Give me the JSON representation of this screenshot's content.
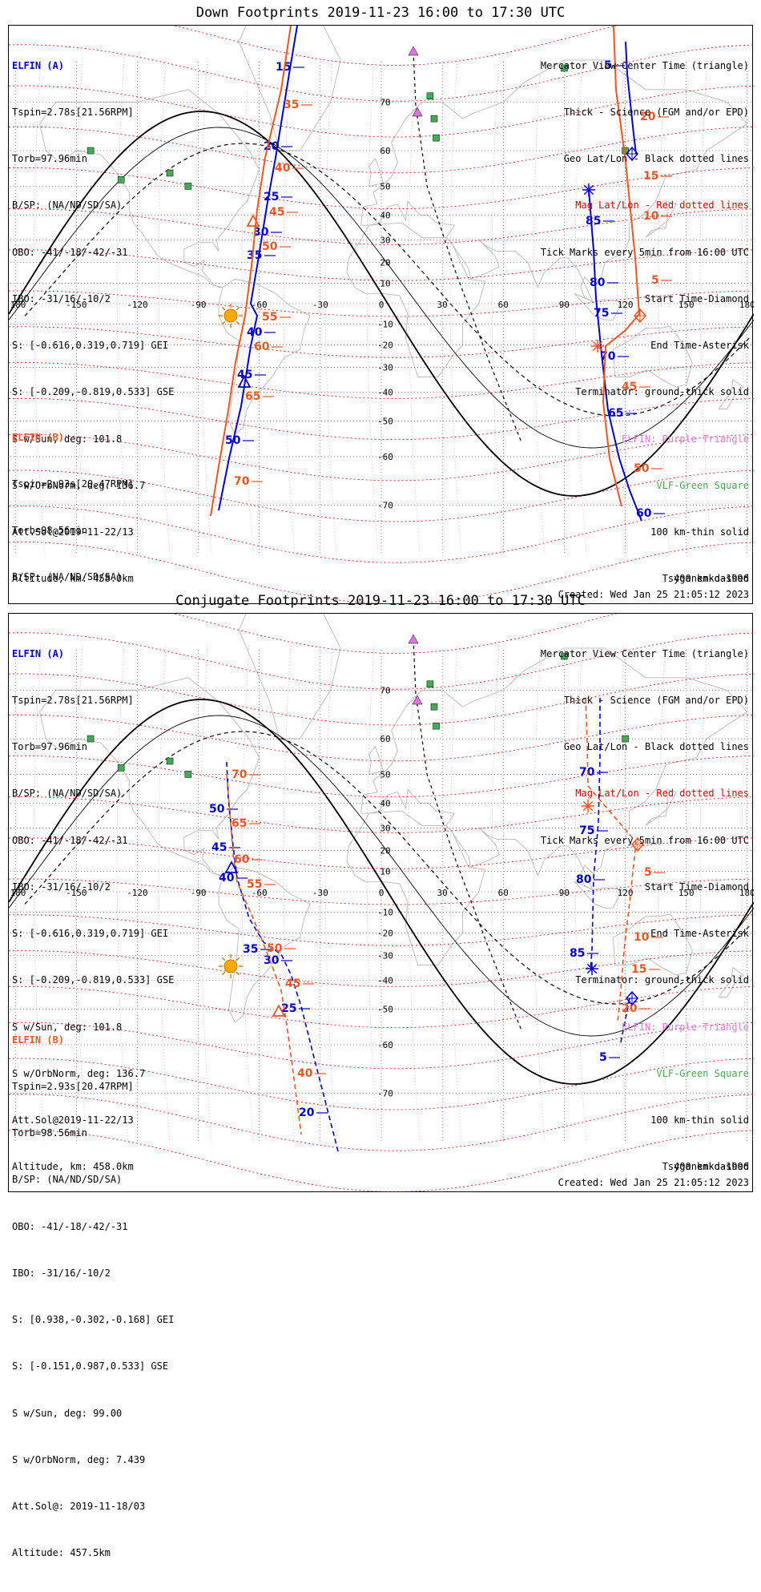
{
  "colors": {
    "probe_a": "#0000cc",
    "probe_b": "#ee5522",
    "mag_grid": "#e00000",
    "geo_grid": "#444444",
    "elfin_marker": "#dd77dd",
    "vlf_marker": "#44aa55",
    "sun": "#ffaa00",
    "coast": "#b8b8b8"
  },
  "icons": {
    "sun": "sun-icon",
    "triangle": "triangle-icon",
    "diamond": "diamond-icon",
    "asterisk": "asterisk-icon",
    "square": "square-icon"
  },
  "info_a": [
    "ELFIN (A)",
    "Tspin=2.78s[21.56RPM]",
    "Torb=97.96min",
    "B/SP: (NA/ND/SD/SA)",
    "OBO: -41/-18/-42/-31",
    "IBO: -31/16/-10/2",
    "S: [-0.616,0.319,0.719] GEI",
    "S: [-0.209,-0.819,0.533] GSE",
    "S w/Sun, deg: 101.8",
    "S w/OrbNorm, deg: 136.7",
    "Att.Sol@2019-11-22/13",
    "Altitude, km: 458.0km"
  ],
  "info_b": [
    "ELFIN (B)",
    "Tspin=2.93s[20.47RPM]",
    "Torb=98.56min",
    "B/SP: (NA/ND/SD/SA)",
    "OBO: -41/-18/-42/-31",
    "IBO: -31/16/-10/2",
    "S: [0.938,-0.302,-0.168] GEI",
    "S: [-0.151,0.987,0.533] GSE",
    "S w/Sun, deg: 99.00",
    "S w/OrbNorm, deg: 7.439",
    "Att.Sol@: 2019-11-18/03",
    "Altitude: 457.5km"
  ],
  "legend": [
    {
      "text": "Mercator View Center Time (triangle)",
      "style": ""
    },
    {
      "text": "Thick - Science (FGM and/or EPD)",
      "style": ""
    },
    {
      "text": "Geo Lat/Lon - Black dotted lines",
      "style": ""
    },
    {
      "text": "Mag Lat/Lon - Red dotted lines",
      "style": "red"
    },
    {
      "text": "Tick Marks every 5min from 16:00 UTC",
      "style": ""
    },
    {
      "text": "Start Time-Diamond",
      "style": ""
    },
    {
      "text": "End Time-Asterisk",
      "style": ""
    },
    {
      "text": "Terminator: ground-thick solid",
      "style": ""
    },
    {
      "text": "ELFIN: Purple Triangle",
      "style": "violet"
    },
    {
      "text": "VLF-Green Square",
      "style": "green"
    },
    {
      "text": "100 km-thin solid",
      "style": ""
    },
    {
      "text": "400 km-dashed",
      "style": ""
    }
  ],
  "model": "Tsyganenko-1996",
  "created": "Created: Wed Jan 25 21:05:12 2023",
  "lon_ticks": [
    "-180",
    "-150",
    "-120",
    "-90",
    "-60",
    "-30",
    "0",
    "30",
    "60",
    "90",
    "120",
    "150",
    "180"
  ],
  "lat_ticks": [
    "70",
    "60",
    "50",
    "40",
    "30",
    "20",
    "10",
    "0",
    "-10",
    "-20",
    "-30",
    "-40",
    "-50",
    "-60",
    "-70"
  ],
  "panels": [
    {
      "title": "Down Footprints 2019-11-23 16:00 to 17:30 UTC",
      "tracks": [
        {
          "probe": "A",
          "style": "solid",
          "points": [
            [
              360,
              0
            ],
            [
              350,
              60
            ],
            [
              333,
              165
            ],
            [
              323,
              220
            ],
            [
              310,
              300
            ],
            [
              302,
              347
            ],
            [
              310,
              362
            ],
            [
              302,
              400
            ],
            [
              290,
              475
            ],
            [
              275,
              540
            ],
            [
              262,
              605
            ]
          ],
          "labels": [
            [
              "15",
              333,
              56
            ],
            [
              "20",
              318,
              155
            ],
            [
              "25",
              318,
              218
            ],
            [
              "30",
              305,
              262
            ],
            [
              "35",
              297,
              291
            ],
            [
              "40",
              297,
              387
            ],
            [
              "45",
              285,
              440
            ],
            [
              "50",
              270,
              522
            ]
          ]
        },
        {
          "probe": "B",
          "style": "solid",
          "points": [
            [
              352,
              0
            ],
            [
              340,
              80
            ],
            [
              320,
              165
            ],
            [
              310,
              230
            ],
            [
              303,
              300
            ],
            [
              295,
              362
            ],
            [
              283,
              420
            ],
            [
              274,
              480
            ],
            [
              262,
              550
            ],
            [
              252,
              612
            ]
          ],
          "labels": [
            [
              "35",
              343,
              103
            ],
            [
              "40",
              332,
              182
            ],
            [
              "45",
              325,
              237
            ],
            [
              "50",
              316,
              280
            ],
            [
              "55",
              316,
              368
            ],
            [
              "60",
              306,
              405
            ],
            [
              "65",
              295,
              467
            ],
            [
              "70",
              281,
              573
            ]
          ]
        },
        {
          "probe": "A",
          "style": "solid",
          "points": [
            [
              770,
              20
            ],
            [
              772,
              60
            ],
            [
              780,
              135
            ],
            [
              783,
              160
            ]
          ],
          "labels": [
            [
              "5",
              743,
              54
            ]
          ]
        },
        {
          "probe": "A",
          "style": "solid",
          "points": [
            [
              724,
              205
            ],
            [
              730,
              280
            ],
            [
              733,
              340
            ],
            [
              740,
              410
            ],
            [
              748,
              480
            ],
            [
              762,
              540
            ],
            [
              775,
              580
            ],
            [
              790,
              618
            ]
          ],
          "labels": [
            [
              "85",
              720,
              248
            ],
            [
              "80",
              725,
              325
            ],
            [
              "75",
              730,
              363
            ],
            [
              "70",
              738,
              417
            ],
            [
              "65",
              748,
              488
            ],
            [
              "60",
              783,
              613
            ]
          ]
        },
        {
          "probe": "B",
          "style": "solid",
          "points": [
            [
              755,
              0
            ],
            [
              758,
              80
            ],
            [
              770,
              170
            ],
            [
              777,
              240
            ],
            [
              782,
              290
            ],
            [
              787,
              360
            ],
            [
              770,
              380
            ],
            [
              745,
              400
            ],
            [
              742,
              470
            ],
            [
              750,
              540
            ],
            [
              765,
              600
            ]
          ],
          "labels": [
            [
              "20",
              788,
              118
            ],
            [
              "15",
              792,
              192
            ],
            [
              "10",
              792,
              242
            ],
            [
              "5",
              802,
              322
            ],
            [
              "45",
              765,
              455
            ],
            [
              "50",
              780,
              557
            ]
          ]
        }
      ],
      "markers": [
        {
          "type": "sun",
          "x": 277,
          "y": 362
        },
        {
          "type": "triangle",
          "color": "probe_b",
          "x": 305,
          "y": 245
        },
        {
          "type": "triangle",
          "color": "probe_a",
          "x": 294,
          "y": 446
        },
        {
          "type": "diamond",
          "color": "probe_a",
          "x": 778,
          "y": 160
        },
        {
          "type": "diamond",
          "color": "probe_b",
          "x": 788,
          "y": 362
        },
        {
          "type": "asterisk",
          "color": "probe_a",
          "x": 724,
          "y": 205
        },
        {
          "type": "asterisk",
          "color": "probe_b",
          "x": 735,
          "y": 400
        }
      ]
    },
    {
      "title": "Conjugate Footprints 2019-11-23 16:00 to 17:30 UTC",
      "tracks": [
        {
          "probe": "A",
          "style": "dashed",
          "points": [
            [
              272,
              185
            ],
            [
              274,
              230
            ],
            [
              280,
              290
            ],
            [
              285,
              330
            ],
            [
              300,
              380
            ],
            [
              318,
              410
            ],
            [
              340,
              425
            ],
            [
              352,
              450
            ],
            [
              365,
              490
            ],
            [
              380,
              550
            ],
            [
              398,
              620
            ],
            [
              412,
              675
            ]
          ],
          "labels": [
            [
              "50",
              250,
              248
            ],
            [
              "45",
              253,
              296
            ],
            [
              "40",
              262,
              334
            ],
            [
              "35",
              292,
              423
            ],
            [
              "30",
              318,
              437
            ],
            [
              "25",
              340,
              497
            ],
            [
              "20",
              362,
              627
            ]
          ]
        },
        {
          "probe": "B",
          "style": "dashed",
          "points": [
            [
              272,
              200
            ],
            [
              276,
              250
            ],
            [
              280,
              300
            ],
            [
              285,
              335
            ],
            [
              305,
              380
            ],
            [
              325,
              430
            ],
            [
              340,
              470
            ],
            [
              348,
              520
            ],
            [
              356,
              580
            ],
            [
              365,
              650
            ]
          ],
          "labels": [
            [
              "70",
              278,
              205
            ],
            [
              "65",
              278,
              266
            ],
            [
              "60",
              281,
              311
            ],
            [
              "55",
              297,
              342
            ],
            [
              "50",
              322,
              422
            ],
            [
              "45",
              345,
              466
            ],
            [
              "40",
              360,
              578
            ]
          ]
        },
        {
          "probe": "A",
          "style": "dashed",
          "points": [
            [
              738,
              105
            ],
            [
              738,
              180
            ],
            [
              736,
              260
            ],
            [
              730,
              330
            ],
            [
              728,
              420
            ],
            [
              726,
              445
            ]
          ],
          "labels": [
            [
              "70",
              712,
              202
            ],
            [
              "75",
              712,
              275
            ],
            [
              "80",
              708,
              336
            ],
            [
              "85",
              700,
              428
            ]
          ]
        },
        {
          "probe": "A",
          "style": "dashed",
          "points": [
            [
              775,
              480
            ],
            [
              764,
              535
            ]
          ],
          "labels": [
            [
              "5",
              737,
              558
            ]
          ]
        },
        {
          "probe": "B",
          "style": "dashed",
          "points": [
            [
              720,
              105
            ],
            [
              722,
              160
            ],
            [
              723,
              215
            ],
            [
              783,
              285
            ],
            [
              775,
              360
            ],
            [
              768,
              420
            ],
            [
              764,
              470
            ],
            [
              760,
              510
            ]
          ],
          "labels": [
            [
              "5",
              793,
              327
            ],
            [
              "10",
              780,
              408
            ],
            [
              "15",
              777,
              448
            ],
            [
              "20",
              765,
              497
            ]
          ]
        }
      ],
      "markers": [
        {
          "type": "sun",
          "x": 277,
          "y": 440
        },
        {
          "type": "triangle",
          "color": "probe_a",
          "x": 278,
          "y": 318
        },
        {
          "type": "triangle",
          "color": "probe_b",
          "x": 337,
          "y": 497
        },
        {
          "type": "diamond",
          "color": "probe_b",
          "x": 785,
          "y": 288
        },
        {
          "type": "diamond",
          "color": "probe_a",
          "x": 778,
          "y": 480
        },
        {
          "type": "asterisk",
          "color": "probe_b",
          "x": 723,
          "y": 240
        },
        {
          "type": "asterisk",
          "color": "probe_a",
          "x": 728,
          "y": 443
        }
      ]
    }
  ]
}
